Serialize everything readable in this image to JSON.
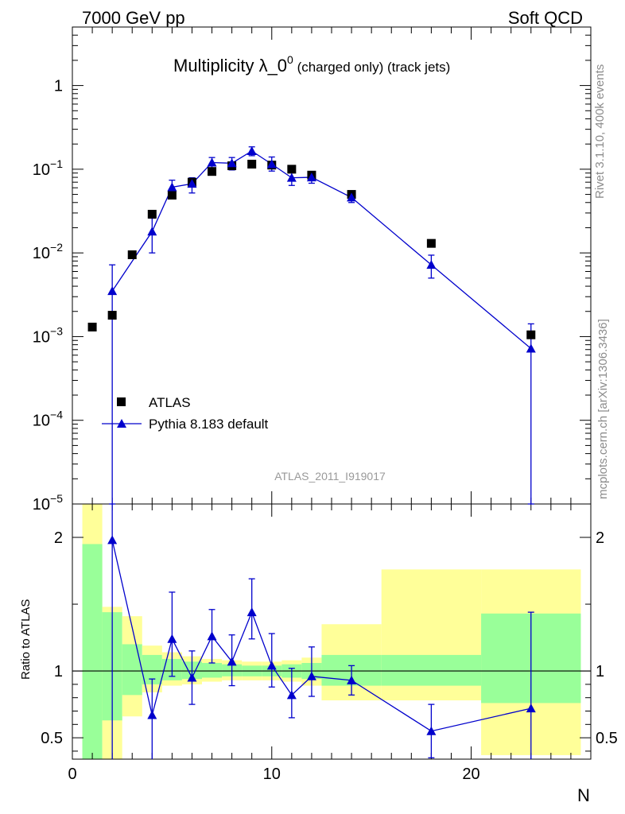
{
  "header": {
    "left": "7000 GeV pp",
    "right": "Soft QCD"
  },
  "side_labels": {
    "rivet": "Rivet 3.1.10,  400k events",
    "mcplots": "mcplots.cern.ch [arXiv:1306.3436]"
  },
  "chart_data": [
    {
      "type": "scatter",
      "panel": "main",
      "title_main": "Multiplicity λ_0",
      "title_sup": "0",
      "title_suffix": " (charged only) (track jets)",
      "xlabel": "N",
      "ylabel": "",
      "yscale": "log",
      "xlim": [
        0,
        26
      ],
      "ylim": [
        1e-05,
        5
      ],
      "y_tick_labels": [
        "10⁻⁵",
        "10⁻⁴",
        "10⁻³",
        "10⁻²",
        "10⁻¹",
        "1"
      ],
      "watermark": "ATLAS_2011_I919017",
      "legend": [
        "ATLAS",
        "Pythia 8.183 default"
      ],
      "series": [
        {
          "name": "ATLAS",
          "x": [
            1,
            2,
            3,
            4,
            5,
            6,
            7,
            8,
            9,
            10,
            11,
            12,
            14,
            18,
            23
          ],
          "y": [
            0.0013,
            0.0018,
            0.0095,
            0.029,
            0.049,
            0.07,
            0.094,
            0.11,
            0.115,
            0.112,
            0.1,
            0.085,
            0.05,
            0.013,
            0.00105
          ],
          "color": "#000000"
        },
        {
          "name": "Pythia 8.183 default",
          "x": [
            2,
            4,
            5,
            6,
            7,
            8,
            9,
            10,
            11,
            12,
            14,
            18,
            23
          ],
          "y": [
            0.0035,
            0.018,
            0.061,
            0.067,
            0.12,
            0.118,
            0.165,
            0.115,
            0.079,
            0.08,
            0.046,
            0.0072,
            0.00072
          ],
          "yerr_low": [
            0.00349,
            0.008,
            0.012,
            0.015,
            0.02,
            0.02,
            0.02,
            0.02,
            0.015,
            0.012,
            0.006,
            0.0022,
            0.00071
          ],
          "yerr_high": [
            0.0037,
            0.008,
            0.013,
            0.012,
            0.018,
            0.02,
            0.02,
            0.025,
            0.015,
            0.012,
            0.006,
            0.0022,
            0.0007
          ],
          "color": "#0000cc"
        }
      ]
    },
    {
      "type": "scatter",
      "panel": "ratio",
      "ylabel": "Ratio to ATLAS",
      "xlabel": "N",
      "xlim": [
        0,
        26
      ],
      "ylim": [
        0.34,
        2.25
      ],
      "y_ticks": [
        0.5,
        1,
        2
      ],
      "y_tick_labels": [
        "0.5",
        "1",
        "2"
      ],
      "x_ticks": [
        0,
        10,
        20
      ],
      "x_tick_labels": [
        "0",
        "10",
        "20"
      ],
      "uncertainty_bands": {
        "x_edges": [
          0.5,
          1.5,
          2.5,
          3.5,
          4.5,
          5.5,
          6.5,
          7.5,
          8.5,
          9.5,
          10.5,
          11.5,
          12.5,
          15.5,
          20.5,
          25.5
        ],
        "yellow_low": [
          0.34,
          0.34,
          0.66,
          0.84,
          0.89,
          0.9,
          0.92,
          0.93,
          0.93,
          0.93,
          0.92,
          0.89,
          0.78,
          0.78,
          0.37
        ],
        "yellow_high": [
          2.25,
          1.48,
          1.41,
          1.19,
          1.14,
          1.11,
          1.09,
          1.08,
          1.07,
          1.07,
          1.08,
          1.1,
          1.35,
          1.76,
          1.76
        ],
        "green_low": [
          0.34,
          0.63,
          0.82,
          0.9,
          0.93,
          0.94,
          0.95,
          0.96,
          0.96,
          0.96,
          0.95,
          0.94,
          0.89,
          0.89,
          0.76
        ],
        "green_high": [
          1.95,
          1.44,
          1.2,
          1.12,
          1.09,
          1.07,
          1.06,
          1.05,
          1.04,
          1.04,
          1.05,
          1.06,
          1.12,
          1.12,
          1.43
        ],
        "yellow_color": "#ffff99",
        "green_color": "#99ff99"
      },
      "series": [
        {
          "name": "Pythia 8.183 default",
          "x": [
            2,
            4,
            5,
            6,
            7,
            8,
            9,
            10,
            11,
            12,
            14,
            18,
            23
          ],
          "y": [
            1.98,
            0.67,
            1.24,
            0.95,
            1.26,
            1.07,
            1.44,
            1.04,
            0.82,
            0.96,
            0.93,
            0.55,
            0.72
          ],
          "yerr_low": [
            1.9,
            0.4,
            0.28,
            0.2,
            0.2,
            0.18,
            0.2,
            0.16,
            0.17,
            0.15,
            0.11,
            0.2,
            0.4
          ],
          "yerr_high": [
            0.3,
            0.27,
            0.35,
            0.2,
            0.2,
            0.2,
            0.25,
            0.24,
            0.2,
            0.22,
            0.11,
            0.2,
            0.72
          ],
          "color": "#0000cc"
        }
      ]
    }
  ]
}
